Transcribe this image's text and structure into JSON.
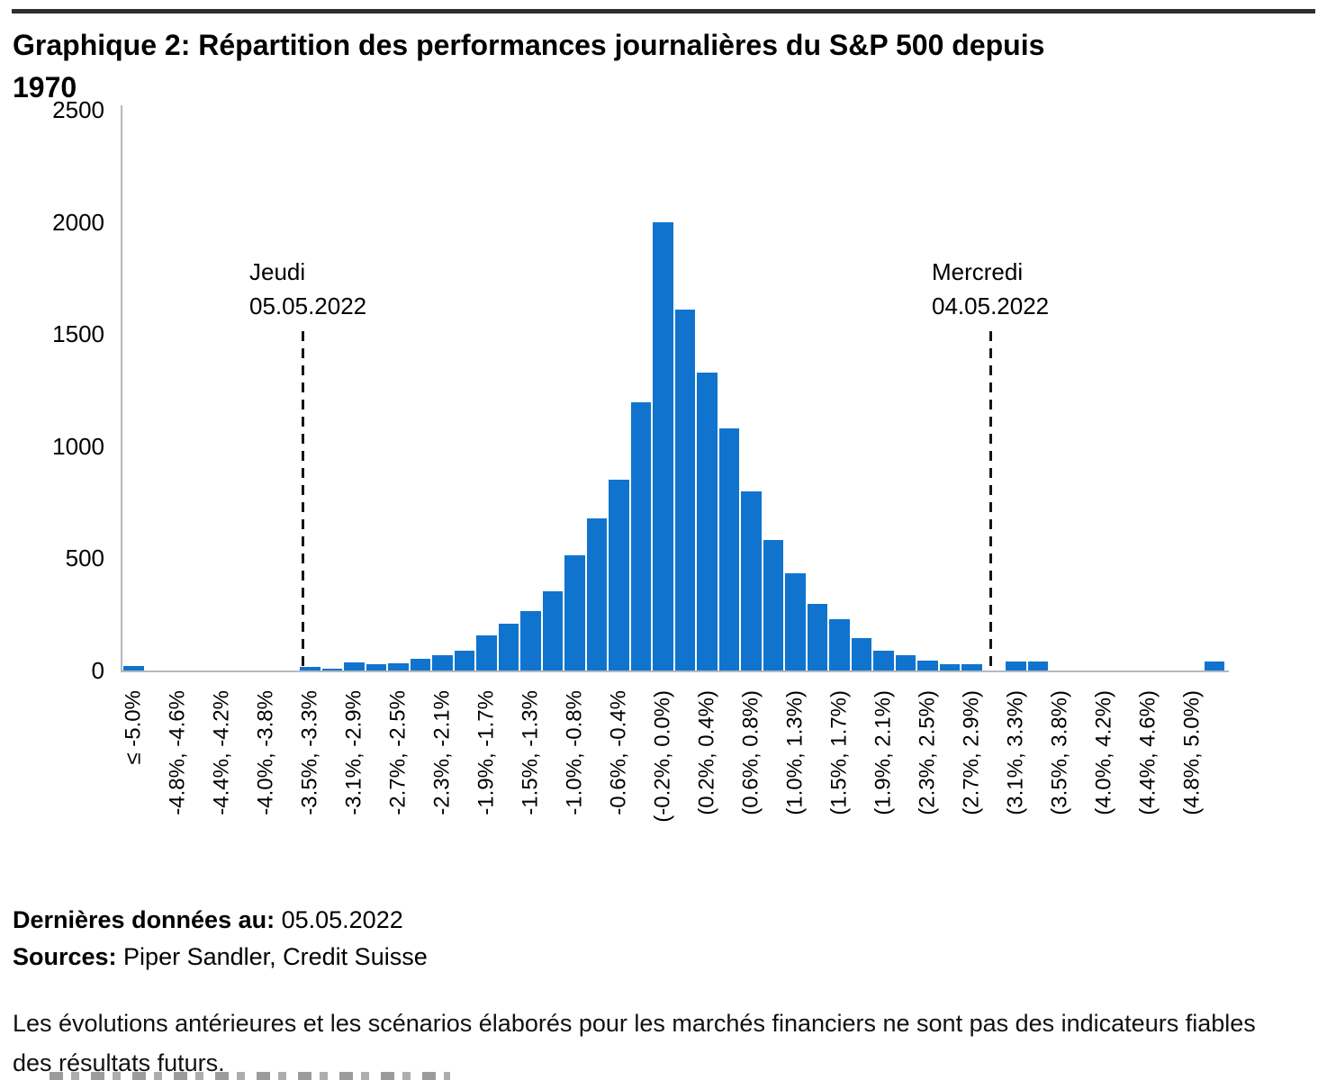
{
  "page": {
    "title_line1": "Graphique 2: Répartition des performances journalières du S&P 500 depuis",
    "title_line2": "1970"
  },
  "chart_data": {
    "type": "bar",
    "title": "Graphique 2: Répartition des performances journalières du S&P 500 depuis 1970",
    "bar_color": "#1074cf",
    "axis_color": "#b3b9be",
    "ylim": [
      0,
      2500
    ],
    "yticks": [
      0,
      500,
      1000,
      1500,
      2000,
      2500
    ],
    "bins": 50,
    "tick_every_other_bin": true,
    "tick_labels": [
      "≤ -5.0%",
      "-4.8%, -4.6%",
      "-4.4%, -4.2%",
      "-4.0%, -3.8%",
      "-3.5%, -3.3%",
      "-3.1%, -2.9%",
      "-2.7%, -2.5%",
      "-2.3%, -2.1%",
      "-1.9%, -1.7%",
      "-1.5%, -1.3%",
      "-1.0%, -0.8%",
      "-0.6%, -0.4%",
      "(-0.2%, 0.0%)",
      "(0.2%, 0.4%)",
      "(0.6%, 0.8%)",
      "(1.0%, 1.3%)",
      "(1.5%, 1.7%)",
      "(1.9%, 2.1%)",
      "(2.3%, 2.5%)",
      "(2.7%, 2.9%)",
      "(3.1%, 3.3%)",
      "(3.5%, 3.8%)",
      "(4.0%, 4.2%)",
      "(4.4%, 4.6%)",
      "(4.8%, 5.0%)"
    ],
    "values": [
      20,
      0,
      0,
      0,
      0,
      0,
      0,
      0,
      15,
      10,
      35,
      30,
      32,
      52,
      70,
      90,
      155,
      210,
      265,
      355,
      515,
      680,
      850,
      1195,
      2000,
      1610,
      1330,
      1080,
      800,
      580,
      435,
      295,
      230,
      145,
      90,
      70,
      45,
      30,
      30,
      0,
      40,
      40,
      0,
      0,
      0,
      0,
      0,
      0,
      0,
      40
    ],
    "legend": "none",
    "grid": "off",
    "annotations": [
      {
        "label_line1": "Jeudi",
        "label_line2": "05.05.2022",
        "line_bin_position": 8.2
      },
      {
        "label_line1": "Mercredi",
        "label_line2": "04.05.2022",
        "line_bin_position": 39.35
      }
    ]
  },
  "footer": {
    "last_data_label": "Dernières données au:",
    "last_data_value": " 05.05.2022",
    "sources_label": "Sources:",
    "sources_value": " Piper Sandler, Credit Suisse",
    "disclaimer": "Les évolutions antérieures et les scénarios élaborés pour les marchés financiers ne sont pas des indicateurs fiables des résultats futurs."
  }
}
